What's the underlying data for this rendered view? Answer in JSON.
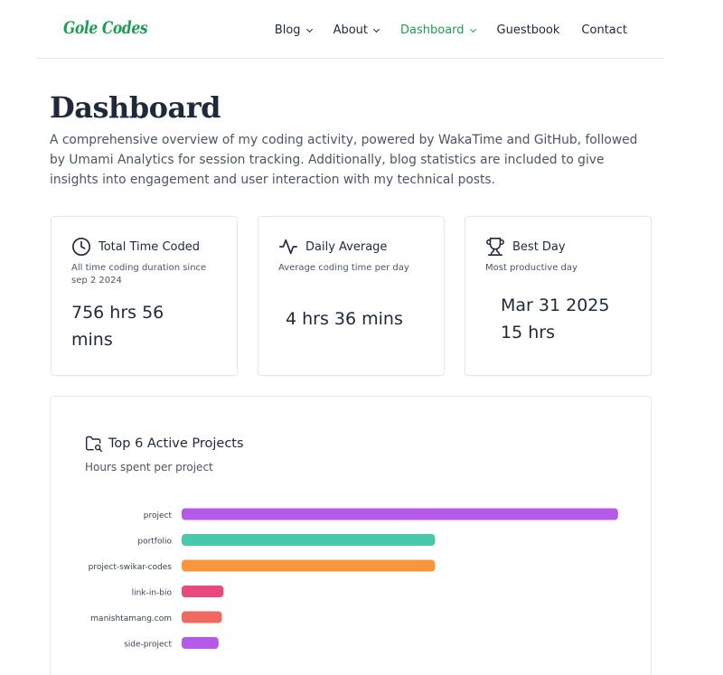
{
  "header": {
    "logo": "Gole Codes",
    "nav": [
      {
        "label": "Blog",
        "dropdown": true,
        "active": false
      },
      {
        "label": "About",
        "dropdown": true,
        "active": false
      },
      {
        "label": "Dashboard",
        "dropdown": true,
        "active": true
      },
      {
        "label": "Guestbook",
        "dropdown": false,
        "active": false
      },
      {
        "label": "Contact",
        "dropdown": false,
        "active": false
      }
    ]
  },
  "page": {
    "title": "Dashboard",
    "description": "A comprehensive overview of my coding activity, powered by WakaTime and GitHub, followed by Umami Analytics for session tracking. Additionally, blog statistics are included to give insights into engagement and user interaction with my technical posts."
  },
  "stats": [
    {
      "icon": "clock-icon",
      "title": "Total Time Coded",
      "subtitle": "All time coding duration since sep 2 2024",
      "value_line1": "756 hrs 56",
      "value_line2": "mins"
    },
    {
      "icon": "activity-icon",
      "title": "Daily Average",
      "subtitle": "Average coding time per day",
      "value_line1": "4 hrs 36 mins",
      "value_line2": ""
    },
    {
      "icon": "trophy-icon",
      "title": "Best Day",
      "subtitle": "Most productive day",
      "value_line1": "Mar 31 2025",
      "value_line2": "15 hrs"
    }
  ],
  "projects": {
    "title": "Top 6 Active Projects",
    "subtitle": "Hours spent per project",
    "icon": "folder-icon"
  },
  "chart_data": {
    "type": "bar",
    "orientation": "horizontal",
    "categories": [
      "project",
      "portfolio",
      "project-swikar-codes",
      "link-in-bio",
      "manishtamang.com",
      "side-project"
    ],
    "values": [
      260,
      151,
      151,
      25,
      24,
      22
    ],
    "colors": [
      "#b55ae8",
      "#48c9a9",
      "#f7963b",
      "#e84a7f",
      "#f0695e",
      "#b55ae8"
    ],
    "xlim": [
      0,
      280
    ],
    "grid": false,
    "axis_labels_visible": false
  }
}
